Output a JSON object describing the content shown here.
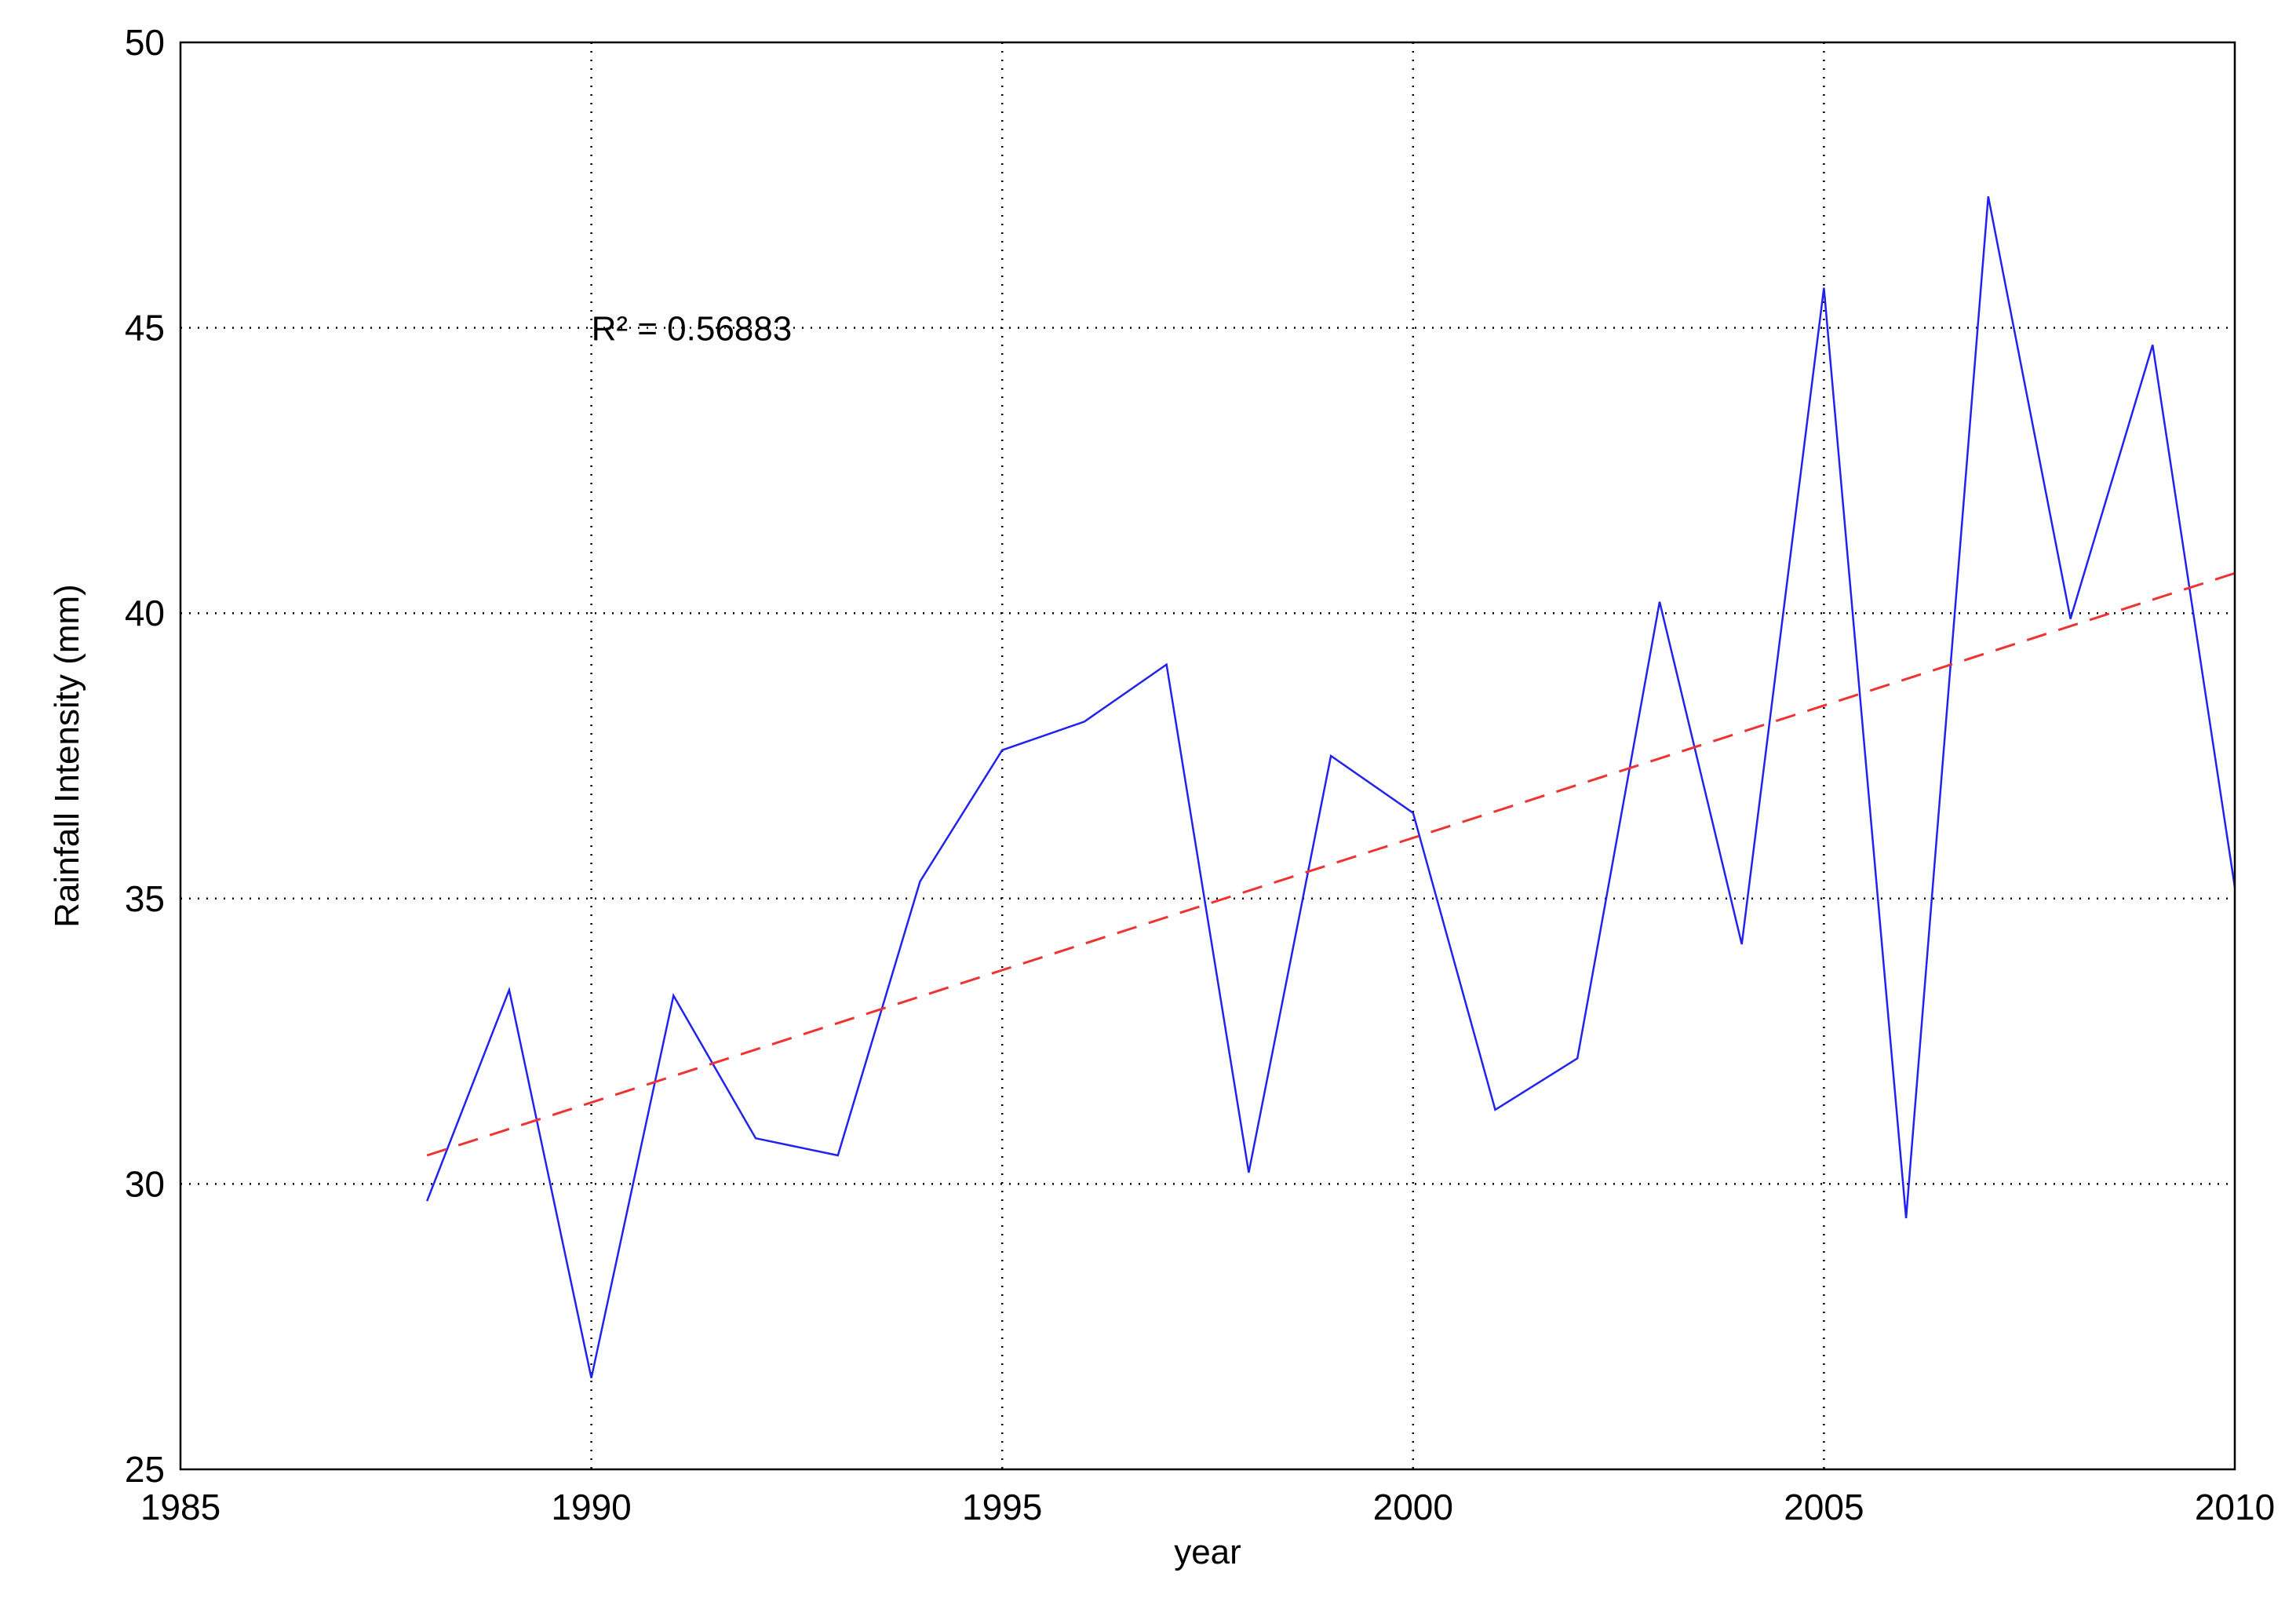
{
  "chart_data": {
    "type": "line",
    "title": "",
    "xlabel": "year",
    "ylabel": "Rainfall Intensity (mm)",
    "xlim": [
      1985,
      2010
    ],
    "ylim": [
      25,
      50
    ],
    "xticks": [
      1985,
      1990,
      1995,
      2000,
      2005,
      2010
    ],
    "yticks": [
      25,
      30,
      35,
      40,
      45,
      50
    ],
    "xtick_labels": [
      "1985",
      "1990",
      "1995",
      "2000",
      "2005",
      "2010"
    ],
    "ytick_labels": [
      "25",
      "30",
      "35",
      "40",
      "45",
      "50"
    ],
    "grid": true,
    "annotation": "R² = 0.56883",
    "series": [
      {
        "style": "solid",
        "color": "#2222ee",
        "x": [
          1988,
          1989,
          1990,
          1991,
          1992,
          1993,
          1994,
          1995,
          1996,
          1997,
          1998,
          1999,
          2000,
          2001,
          2002,
          2003,
          2004,
          2005,
          2006,
          2007,
          2008,
          2009,
          2010
        ],
        "values": [
          29.7,
          33.4,
          26.6,
          33.3,
          30.8,
          30.5,
          35.3,
          37.6,
          38.1,
          39.1,
          30.2,
          37.5,
          36.5,
          31.3,
          32.2,
          40.2,
          34.2,
          45.7,
          29.4,
          47.3,
          39.9,
          44.7,
          35.2
        ]
      },
      {
        "style": "dashed",
        "color": "#ee3333",
        "x": [
          1988,
          2010
        ],
        "values": [
          30.5,
          40.7
        ]
      }
    ]
  }
}
